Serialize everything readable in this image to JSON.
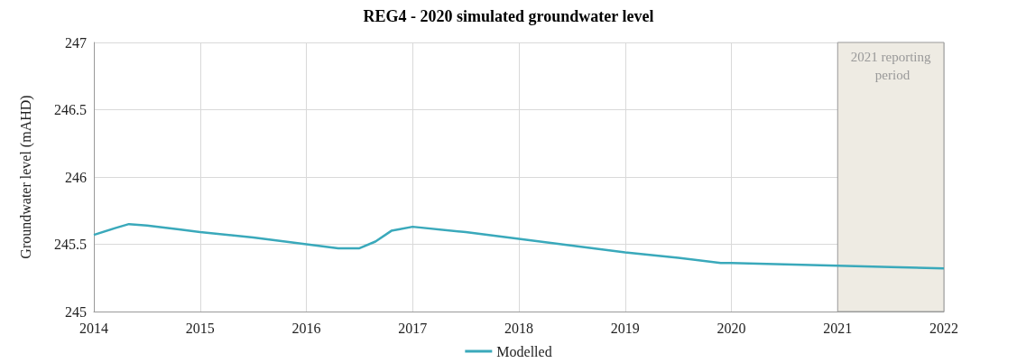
{
  "chart_data": {
    "type": "line",
    "title": "REG4 - 2020 simulated groundwater level",
    "ylabel": "Groundwater level (mAHD)",
    "x": [
      2014,
      2014.2,
      2014.33,
      2014.5,
      2014.8,
      2015,
      2015.5,
      2016,
      2016.3,
      2016.5,
      2016.65,
      2016.8,
      2017,
      2017.5,
      2018,
      2018.5,
      2019,
      2019.5,
      2019.9,
      2020,
      2020.5,
      2021,
      2021.5,
      2022
    ],
    "series": [
      {
        "name": "Modelled",
        "color": "#3aa9bb",
        "values": [
          245.57,
          245.62,
          245.65,
          245.64,
          245.61,
          245.59,
          245.55,
          245.5,
          245.47,
          245.47,
          245.52,
          245.6,
          245.63,
          245.59,
          245.54,
          245.49,
          245.44,
          245.4,
          245.36,
          245.36,
          245.35,
          245.34,
          245.33,
          245.32
        ]
      }
    ],
    "xlim": [
      2014,
      2022
    ],
    "xticks": [
      2014,
      2015,
      2016,
      2017,
      2018,
      2019,
      2020,
      2021,
      2022
    ],
    "ylim": [
      245,
      247
    ],
    "yticks": [
      245,
      245.5,
      246,
      246.5,
      247
    ],
    "bands": [
      {
        "axis": "x",
        "from": 2021,
        "to": 2022,
        "label": "2021 reporting period",
        "color": "#eeebe3"
      }
    ],
    "grid": true,
    "legend": "bottom",
    "marker": "none",
    "line_style": "solid"
  }
}
